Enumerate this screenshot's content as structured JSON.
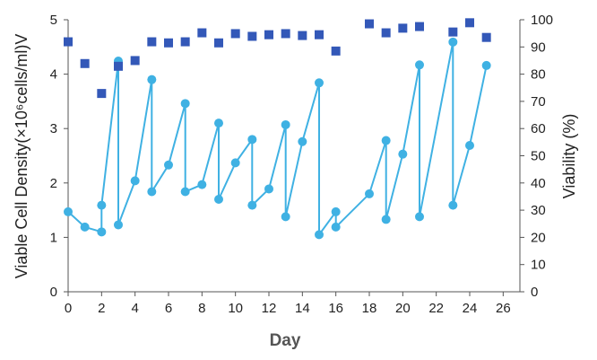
{
  "chart_data": {
    "type": "line",
    "xlabel": "Day",
    "ylabel_left": "Viable Cell Density(×10⁶cells/ml)V",
    "ylabel_right": "Viability (%)",
    "xlim": [
      0,
      27
    ],
    "ylim_left": [
      0,
      5
    ],
    "ylim_right": [
      0,
      100
    ],
    "x_ticks": [
      0,
      2,
      4,
      6,
      8,
      10,
      12,
      14,
      16,
      18,
      20,
      22,
      24,
      26
    ],
    "y_left_ticks": [
      0,
      1,
      2,
      3,
      4,
      5
    ],
    "y_right_ticks": [
      0,
      10,
      20,
      30,
      40,
      50,
      60,
      70,
      80,
      90,
      100
    ],
    "grid": false,
    "legend": "none",
    "colors": {
      "vcd": "#3fb1e3",
      "viability": "#3358b8"
    },
    "series": [
      {
        "axis": "left",
        "style": "line+circle",
        "points": [
          [
            0,
            1.47
          ],
          [
            1,
            1.19
          ],
          [
            2,
            1.1
          ],
          [
            2,
            1.59
          ],
          [
            3,
            4.24
          ],
          [
            3,
            1.23
          ],
          [
            4,
            2.04
          ],
          [
            5,
            3.9
          ],
          [
            5,
            1.84
          ],
          [
            6,
            2.33
          ],
          [
            7,
            3.46
          ],
          [
            7,
            1.84
          ],
          [
            8,
            1.97
          ],
          [
            9,
            3.1
          ],
          [
            9,
            1.7
          ],
          [
            10,
            2.37
          ],
          [
            11,
            2.8
          ],
          [
            11,
            1.59
          ],
          [
            12,
            1.89
          ],
          [
            13,
            3.07
          ],
          [
            13,
            1.38
          ],
          [
            14,
            2.76
          ],
          [
            15,
            3.84
          ],
          [
            15,
            1.05
          ],
          [
            16,
            1.47
          ],
          [
            16,
            1.19
          ],
          [
            18,
            1.8
          ],
          [
            19,
            2.78
          ],
          [
            19,
            1.33
          ],
          [
            20,
            2.53
          ],
          [
            21,
            4.17
          ],
          [
            21,
            1.38
          ],
          [
            23,
            4.59
          ],
          [
            23,
            1.59
          ],
          [
            24,
            2.69
          ],
          [
            25,
            4.16
          ]
        ]
      },
      {
        "axis": "right",
        "style": "square",
        "points": [
          [
            0,
            91.9
          ],
          [
            1,
            83.9
          ],
          [
            2,
            72.9
          ],
          [
            3,
            82.9
          ],
          [
            4,
            85.0
          ],
          [
            5,
            91.9
          ],
          [
            6,
            91.5
          ],
          [
            7,
            91.9
          ],
          [
            8,
            95.2
          ],
          [
            9,
            91.5
          ],
          [
            10,
            94.9
          ],
          [
            11,
            93.9
          ],
          [
            12,
            94.5
          ],
          [
            13,
            94.9
          ],
          [
            14,
            94.2
          ],
          [
            15,
            94.5
          ],
          [
            16,
            88.5
          ],
          [
            18,
            98.5
          ],
          [
            19,
            95.2
          ],
          [
            20,
            96.9
          ],
          [
            21,
            97.5
          ],
          [
            23,
            95.5
          ],
          [
            24,
            98.9
          ],
          [
            25,
            93.5
          ]
        ]
      }
    ]
  }
}
